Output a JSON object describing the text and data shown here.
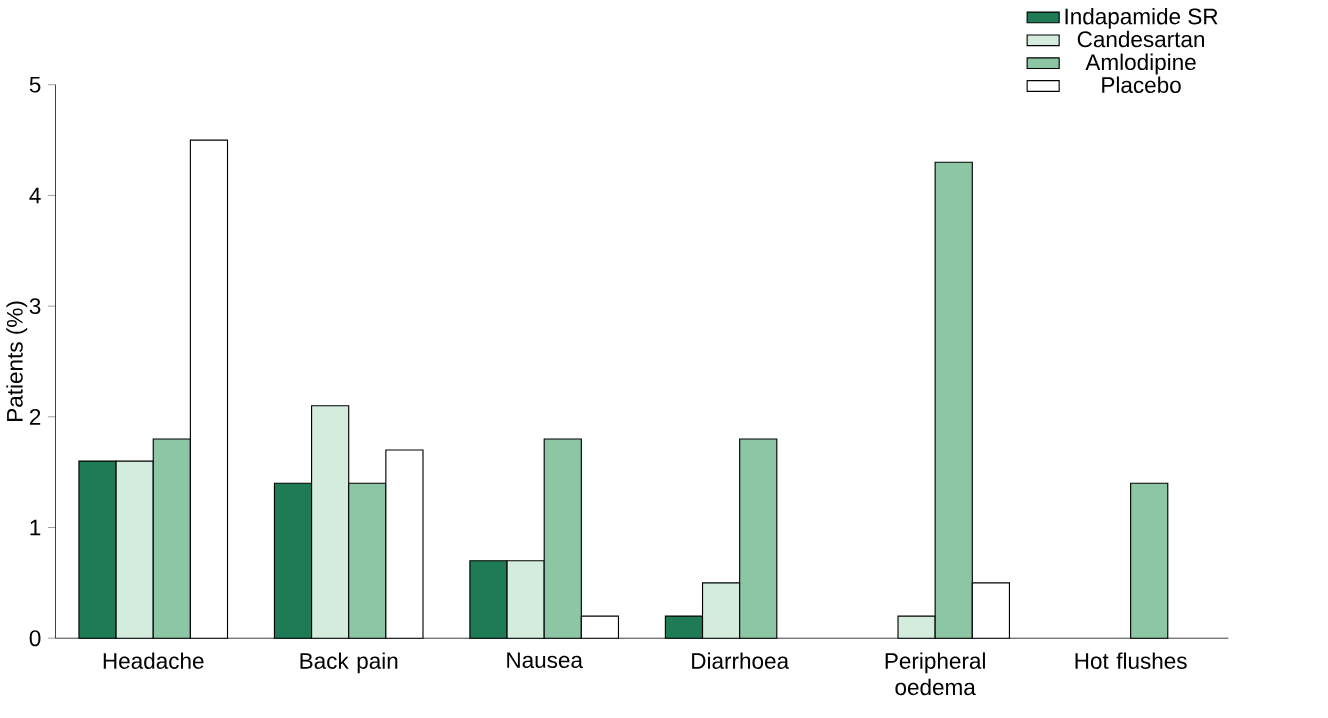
{
  "chart_data": {
    "type": "bar",
    "ylabel": "Patients (%)",
    "categories": [
      "Headache",
      "Back pain",
      "Nausea",
      "Diarrhoea",
      "Peripheral oedema",
      "Hot flushes"
    ],
    "series": [
      {
        "name": "Indapamide SR",
        "color": "#1e7b55",
        "values": [
          1.6,
          1.4,
          0.7,
          0.2,
          null,
          null
        ]
      },
      {
        "name": "Candesartan",
        "color": "#d3ecde",
        "values": [
          1.6,
          2.1,
          0.7,
          0.5,
          0.2,
          null
        ]
      },
      {
        "name": "Amlodipine",
        "color": "#8dc6a5",
        "values": [
          1.8,
          1.4,
          1.8,
          1.8,
          4.3,
          1.4
        ]
      },
      {
        "name": "Placebo",
        "color": "#ffffff",
        "values": [
          4.5,
          1.7,
          0.2,
          null,
          0.5,
          null
        ]
      }
    ],
    "ylim": [
      0,
      5
    ],
    "yticks": [
      0,
      1,
      2,
      3,
      4,
      5
    ],
    "grid": false,
    "legend": "top right"
  }
}
